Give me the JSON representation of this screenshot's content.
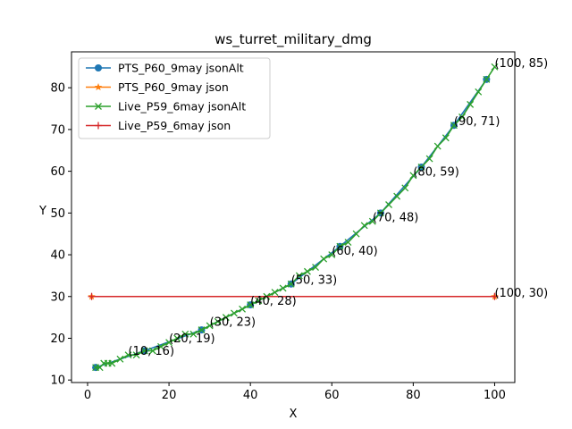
{
  "chart_data": {
    "type": "line",
    "title": "ws_turret_military_dmg",
    "xlabel": "X",
    "ylabel": "Y",
    "xlim": [
      -3.95,
      104.95
    ],
    "ylim": [
      9.4,
      88.6
    ],
    "xticks": [
      0,
      20,
      40,
      60,
      80,
      100
    ],
    "yticks": [
      10,
      20,
      30,
      40,
      50,
      60,
      70,
      80
    ],
    "grid": false,
    "legend_position": "upper-left",
    "series": [
      {
        "name": "PTS_P60_9may jsonAlt",
        "color": "#1f77b4",
        "marker": "circle",
        "x": [
          2,
          14,
          28,
          40,
          50,
          62,
          72,
          82,
          90,
          98
        ],
        "y": [
          13,
          17,
          22,
          28,
          33,
          42,
          50,
          61,
          71,
          82
        ]
      },
      {
        "name": "PTS_P60_9may json",
        "color": "#ff7f0e",
        "marker": "star",
        "x": [
          1,
          100
        ],
        "y": [
          30,
          30
        ]
      },
      {
        "name": "Live_P59_6may jsonAlt",
        "color": "#2ca02c",
        "marker": "x",
        "x": [
          2,
          3,
          4,
          5,
          6,
          8,
          10,
          12,
          14,
          16,
          18,
          20,
          22,
          24,
          26,
          28,
          30,
          32,
          34,
          36,
          38,
          40,
          42,
          44,
          46,
          48,
          50,
          52,
          54,
          56,
          58,
          60,
          62,
          64,
          66,
          68,
          70,
          72,
          74,
          76,
          78,
          80,
          82,
          84,
          86,
          88,
          90,
          92,
          94,
          96,
          98,
          100
        ],
        "y": [
          13,
          13,
          14,
          14,
          14,
          15,
          16,
          16,
          17,
          17,
          18,
          19,
          20,
          21,
          21,
          22,
          23,
          24,
          25,
          26,
          27,
          28,
          29,
          30,
          31,
          32,
          33,
          35,
          36,
          37,
          39,
          40,
          42,
          43,
          45,
          47,
          48,
          50,
          52,
          54,
          56,
          59,
          61,
          63,
          66,
          68,
          71,
          73,
          76,
          79,
          82,
          85
        ]
      },
      {
        "name": "Live_P59_6may json",
        "color": "#d62728",
        "marker": "plus",
        "x": [
          1,
          100
        ],
        "y": [
          30,
          30
        ]
      }
    ],
    "annotations": [
      {
        "x": 10,
        "y": 16,
        "text": "(10, 16)"
      },
      {
        "x": 20,
        "y": 19,
        "text": "(20, 19)"
      },
      {
        "x": 30,
        "y": 23,
        "text": "(30, 23)"
      },
      {
        "x": 40,
        "y": 28,
        "text": "(40, 28)"
      },
      {
        "x": 50,
        "y": 33,
        "text": "(50, 33)"
      },
      {
        "x": 60,
        "y": 40,
        "text": "(60, 40)"
      },
      {
        "x": 70,
        "y": 48,
        "text": "(70, 48)"
      },
      {
        "x": 80,
        "y": 59,
        "text": "(80, 59)"
      },
      {
        "x": 90,
        "y": 71,
        "text": "(90, 71)"
      },
      {
        "x": 100,
        "y": 85,
        "text": "(100, 85)"
      },
      {
        "x": 100,
        "y": 30,
        "text": "(100, 30)"
      }
    ]
  }
}
